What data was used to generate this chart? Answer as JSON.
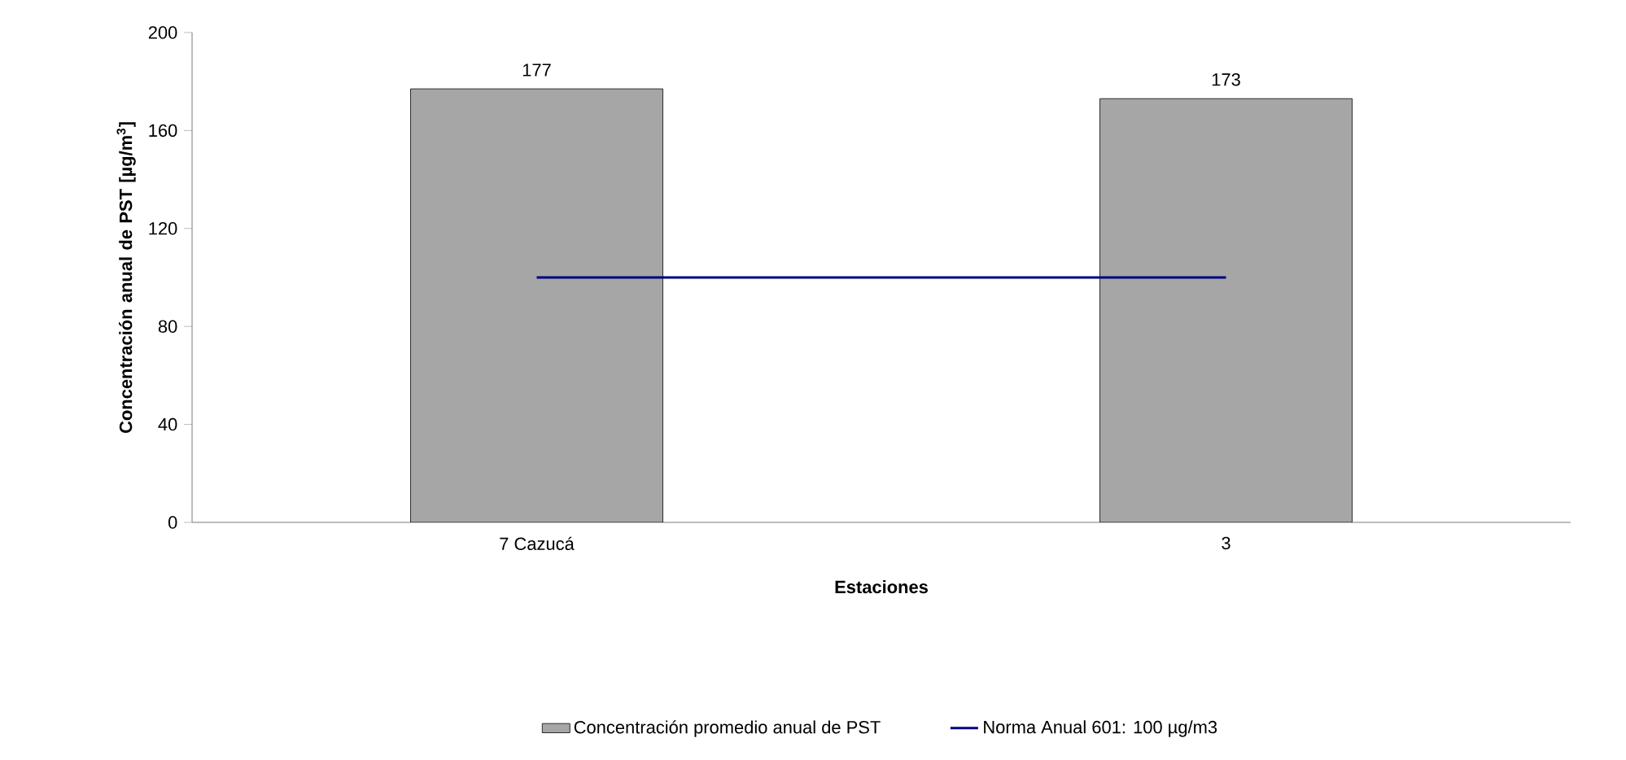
{
  "chart_data": {
    "type": "bar",
    "xlabel": "Estaciones",
    "ylabel": "Concentración anual de PST [µg/m$^{3}$]",
    "categories": [
      "7 Cazucá",
      "3"
    ],
    "ylim": [
      0,
      200
    ],
    "yticks": [
      0,
      40,
      80,
      120,
      160,
      200
    ],
    "legend": "bottom",
    "grid": false,
    "series": [
      {
        "name": "Concentración promedio anual de PST",
        "color": "#a6a6a6",
        "values": [
          177,
          173
        ],
        "value_labels": [
          "177",
          "173"
        ]
      },
      {
        "type": "line",
        "name": "Norma Anual 601: 100 µg/m3",
        "color": "#000080",
        "values": [
          100,
          100
        ]
      }
    ]
  }
}
